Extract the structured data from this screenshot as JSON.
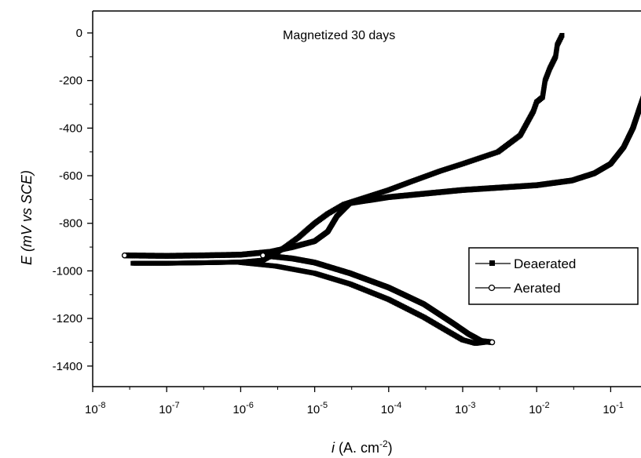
{
  "chart_data": {
    "type": "line",
    "title": "",
    "annotation": "Magnetized 30 days",
    "xlabel_italic": "i",
    "xlabel_rest": " (A. cm",
    "xlabel_sup": "-2",
    "xlabel_close": ")",
    "ylabel_e": "E",
    "ylabel_rest": " (mV vs SCE)",
    "xscale": "log",
    "xlim": [
      1e-08,
      0.3
    ],
    "ylim": [
      -1700,
      100
    ],
    "xticks": [
      {
        "base": "10",
        "exp": "-8",
        "value": 1e-08
      },
      {
        "base": "10",
        "exp": "-7",
        "value": 1e-07
      },
      {
        "base": "10",
        "exp": "-6",
        "value": 1e-06
      },
      {
        "base": "10",
        "exp": "-5",
        "value": 1e-05
      },
      {
        "base": "10",
        "exp": "-4",
        "value": 0.0001
      },
      {
        "base": "10",
        "exp": "-3",
        "value": 0.001
      },
      {
        "base": "10",
        "exp": "-2",
        "value": 0.01
      },
      {
        "base": "10",
        "exp": "-1",
        "value": 0.1
      }
    ],
    "yticks": [
      {
        "label": "0",
        "value": 0
      },
      {
        "label": "-200",
        "value": -200
      },
      {
        "label": "-400",
        "value": -400
      },
      {
        "label": "-600",
        "value": -600
      },
      {
        "label": "-800",
        "value": -800
      },
      {
        "label": "-1000",
        "value": -1000
      },
      {
        "label": "-1200",
        "value": -1200
      },
      {
        "label": "-1400",
        "value": -1400
      }
    ],
    "grid": false,
    "legend_position": "right",
    "legend": [
      "Deaerated",
      "Aerated"
    ],
    "series": [
      {
        "name": "Deaerated",
        "marker": "square",
        "color": "#000000",
        "anodic": [
          [
            3.5e-08,
            -968
          ],
          [
            1e-07,
            -968
          ],
          [
            3e-07,
            -966
          ],
          [
            1e-06,
            -963
          ],
          [
            2e-06,
            -955
          ],
          [
            3e-06,
            -925
          ],
          [
            4e-06,
            -900
          ],
          [
            6e-06,
            -860
          ],
          [
            1e-05,
            -800
          ],
          [
            1.5e-05,
            -760
          ],
          [
            2.5e-05,
            -720
          ],
          [
            5e-05,
            -690
          ],
          [
            0.0001,
            -660
          ],
          [
            0.0002,
            -625
          ],
          [
            0.0005,
            -580
          ],
          [
            0.001,
            -550
          ],
          [
            0.003,
            -500
          ],
          [
            0.006,
            -430
          ],
          [
            0.009,
            -330
          ],
          [
            0.01,
            -290
          ],
          [
            0.012,
            -270
          ],
          [
            0.013,
            -200
          ],
          [
            0.015,
            -150
          ],
          [
            0.018,
            -100
          ],
          [
            0.019,
            -50
          ],
          [
            0.022,
            -10
          ]
        ],
        "cathodic": [
          [
            1e-06,
            -965
          ],
          [
            3e-06,
            -980
          ],
          [
            1e-05,
            -1010
          ],
          [
            3e-05,
            -1055
          ],
          [
            0.0001,
            -1120
          ],
          [
            0.0003,
            -1195
          ],
          [
            0.0006,
            -1250
          ],
          [
            0.001,
            -1290
          ],
          [
            0.0015,
            -1305
          ],
          [
            0.002,
            -1300
          ]
        ]
      },
      {
        "name": "Aerated",
        "marker": "circle",
        "color": "#000000",
        "anodic": [
          [
            2.7e-08,
            -935
          ],
          [
            1e-07,
            -937
          ],
          [
            3e-07,
            -935
          ],
          [
            1e-06,
            -932
          ],
          [
            2.5e-06,
            -920
          ],
          [
            5e-06,
            -900
          ],
          [
            1e-05,
            -875
          ],
          [
            1.5e-05,
            -835
          ],
          [
            2e-05,
            -770
          ],
          [
            3e-05,
            -715
          ],
          [
            0.0001,
            -690
          ],
          [
            0.001,
            -660
          ],
          [
            0.01,
            -640
          ],
          [
            0.03,
            -620
          ],
          [
            0.06,
            -590
          ],
          [
            0.1,
            -550
          ],
          [
            0.15,
            -480
          ],
          [
            0.2,
            -400
          ],
          [
            0.25,
            -310
          ],
          [
            0.3,
            -240
          ]
        ],
        "cathodic": [
          [
            2e-06,
            -935
          ],
          [
            5e-06,
            -948
          ],
          [
            1e-05,
            -965
          ],
          [
            3e-05,
            -1010
          ],
          [
            0.0001,
            -1070
          ],
          [
            0.0003,
            -1140
          ],
          [
            0.0007,
            -1215
          ],
          [
            0.0012,
            -1265
          ],
          [
            0.0018,
            -1295
          ],
          [
            0.0025,
            -1300
          ]
        ]
      }
    ]
  }
}
